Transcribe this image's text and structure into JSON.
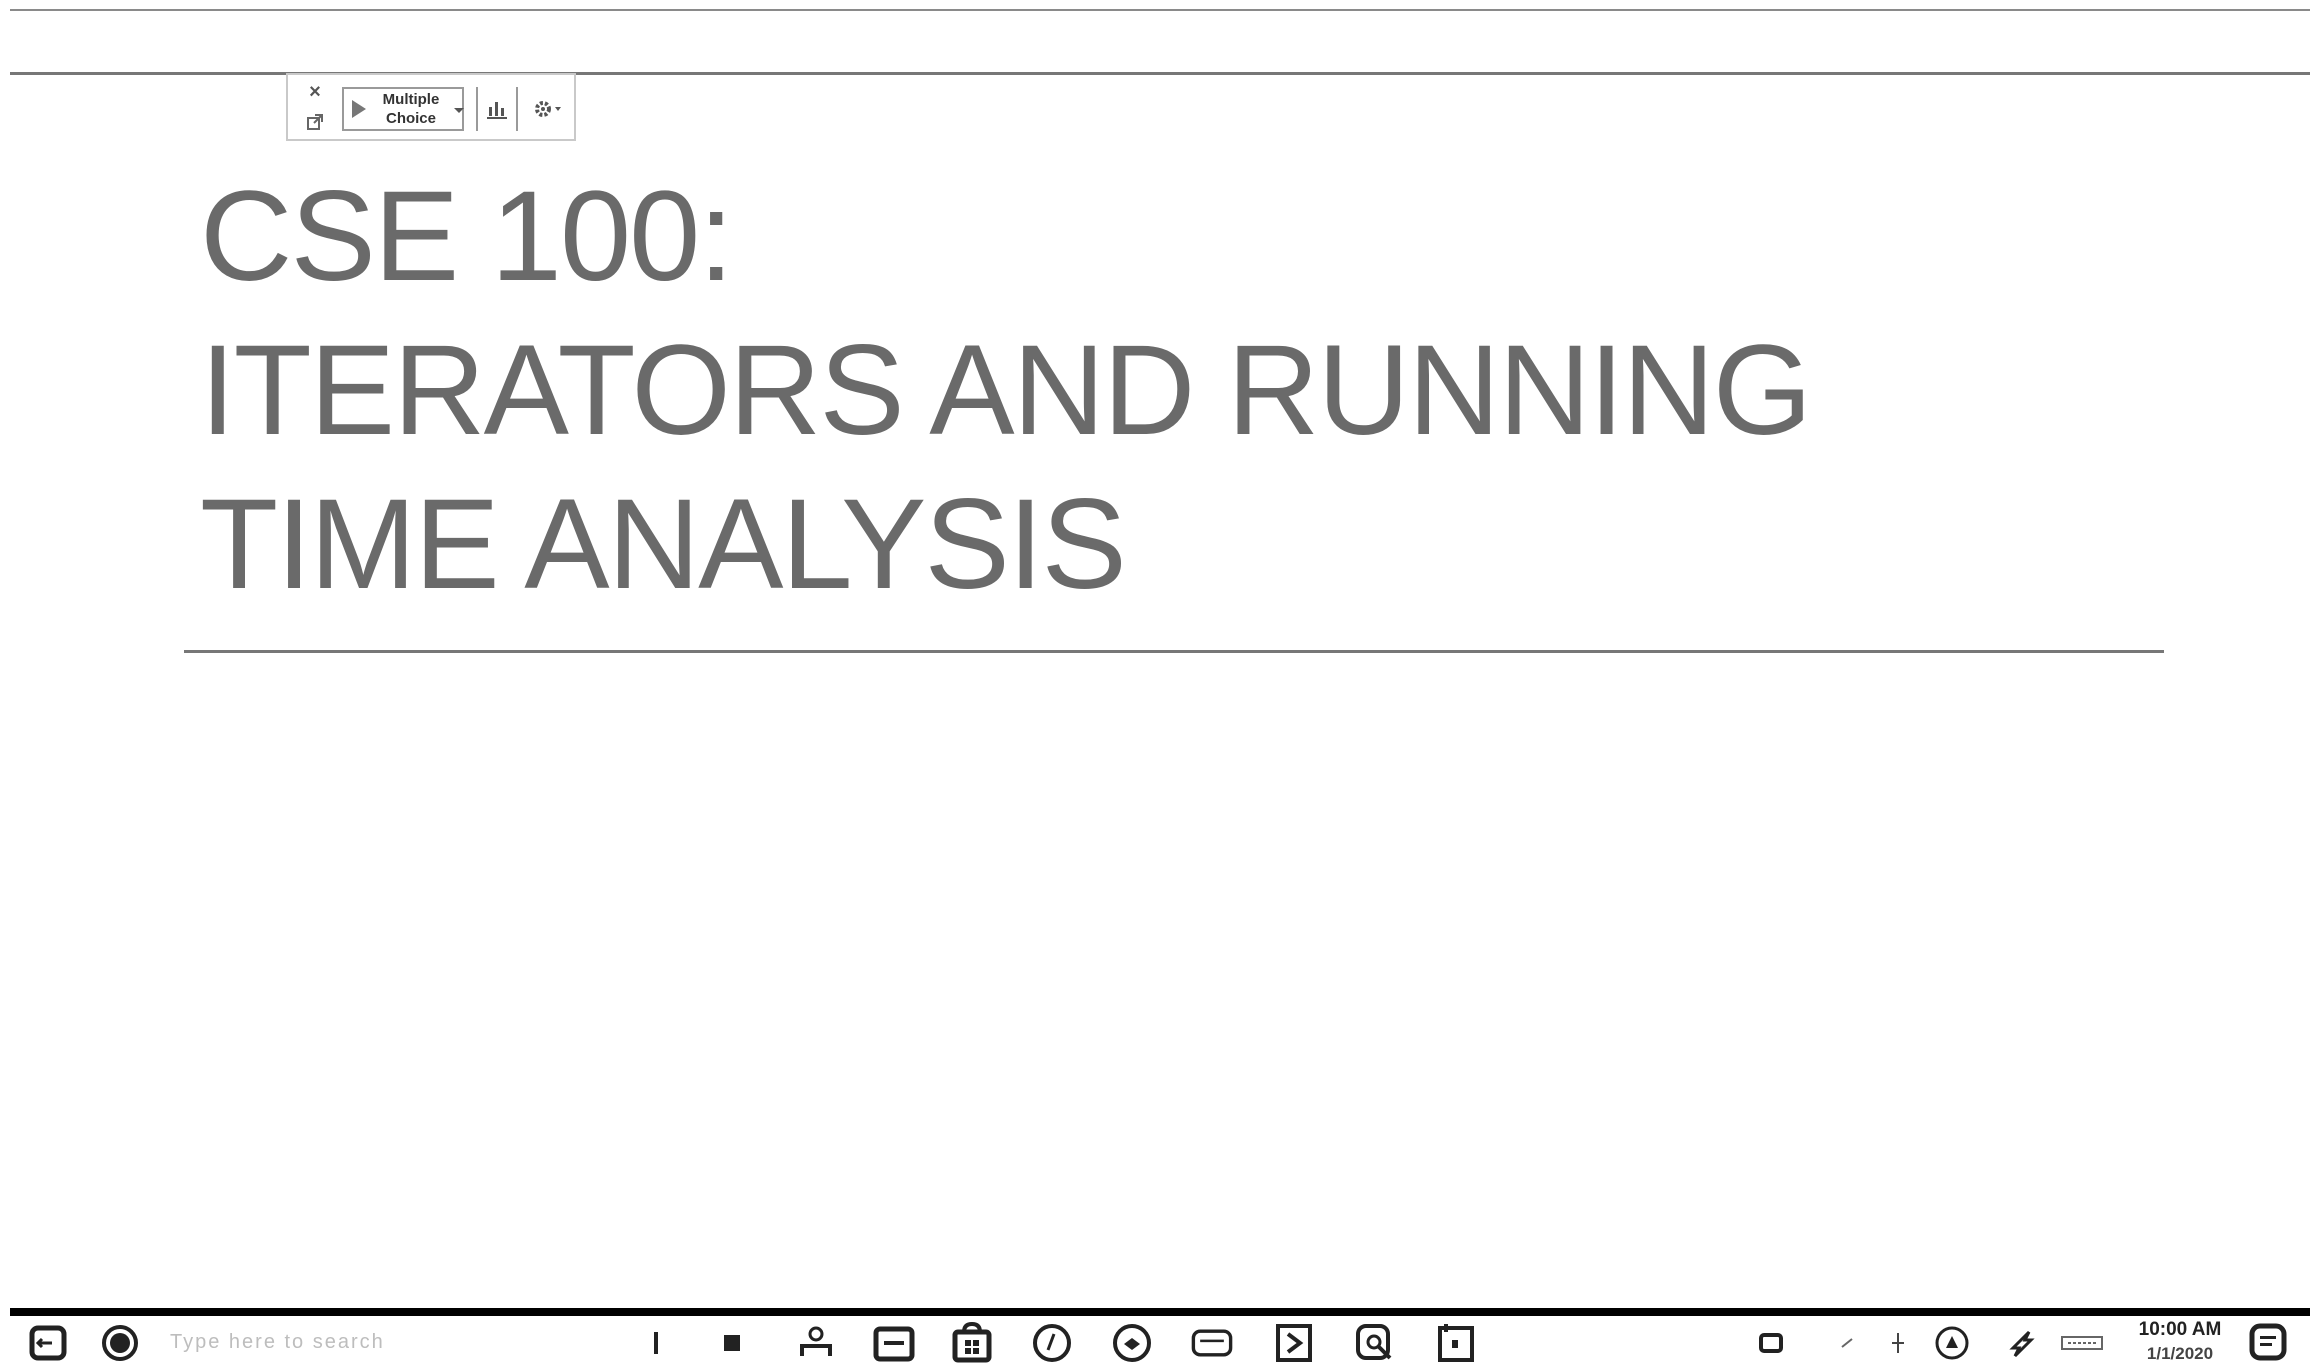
{
  "poll_toolbar": {
    "close_glyph": "×",
    "activity_type_line1": "Multiple",
    "activity_type_line2": "Choice"
  },
  "slide": {
    "title_line1": "CSE 100:",
    "title_line2": "ITERATORS AND RUNNING",
    "title_line3": "TIME ANALYSIS"
  },
  "taskbar": {
    "search_placeholder": "Type here to search",
    "clock_time": "10:00 AM",
    "clock_date": "1/1/2020",
    "icons": [
      "windows-start-icon",
      "cortana-icon",
      "task-view-icon",
      "people-icon",
      "file-explorer-icon",
      "store-icon",
      "chrome-icon",
      "firefox-icon",
      "mail-icon",
      "powerpoint-icon",
      "search-app-icon",
      "media-icon",
      "network-icon",
      "volume-icon",
      "battery-icon",
      "keyboard-icon",
      "notifications-icon"
    ]
  },
  "colors": {
    "title_text": "#6a6a6a",
    "rule": "#777777",
    "taskbar_line": "#000000"
  }
}
